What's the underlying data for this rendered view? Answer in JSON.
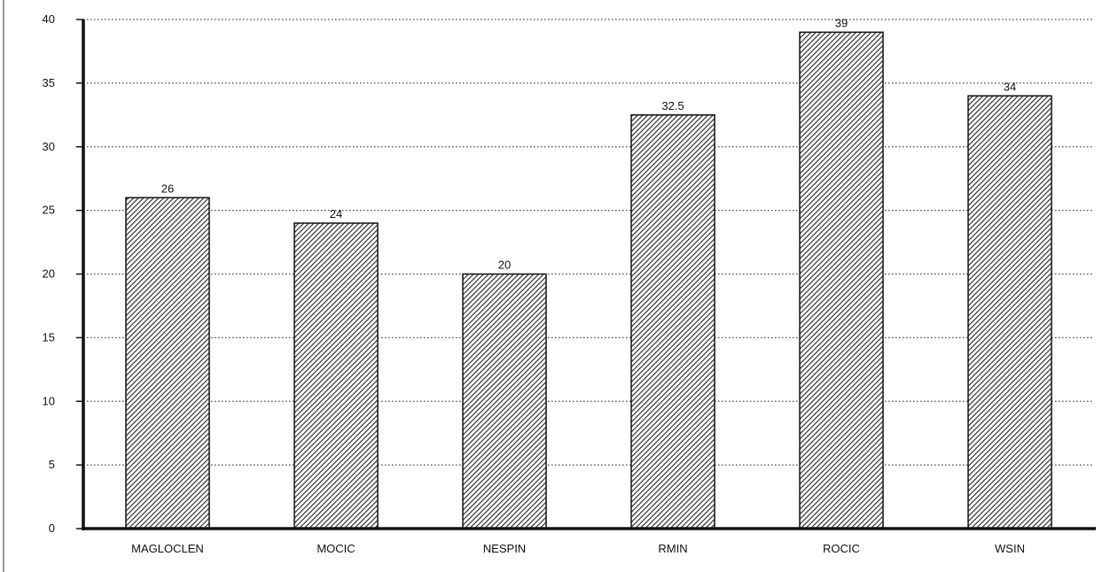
{
  "chart_data": {
    "type": "bar",
    "categories": [
      "MAGLOCLEN",
      "MOCIC",
      "NESPIN",
      "RMIN",
      "ROCIC",
      "WSIN"
    ],
    "values": [
      26,
      24,
      20,
      32.5,
      39,
      34
    ],
    "data_labels": [
      "26",
      "24",
      "20",
      "32.5",
      "39",
      "34"
    ],
    "ylim": [
      0,
      40
    ],
    "yticks": [
      0,
      5,
      10,
      15,
      20,
      25,
      30,
      35,
      40
    ],
    "grid": true,
    "bar_fill": "hatched",
    "bar_color": "#222222"
  }
}
